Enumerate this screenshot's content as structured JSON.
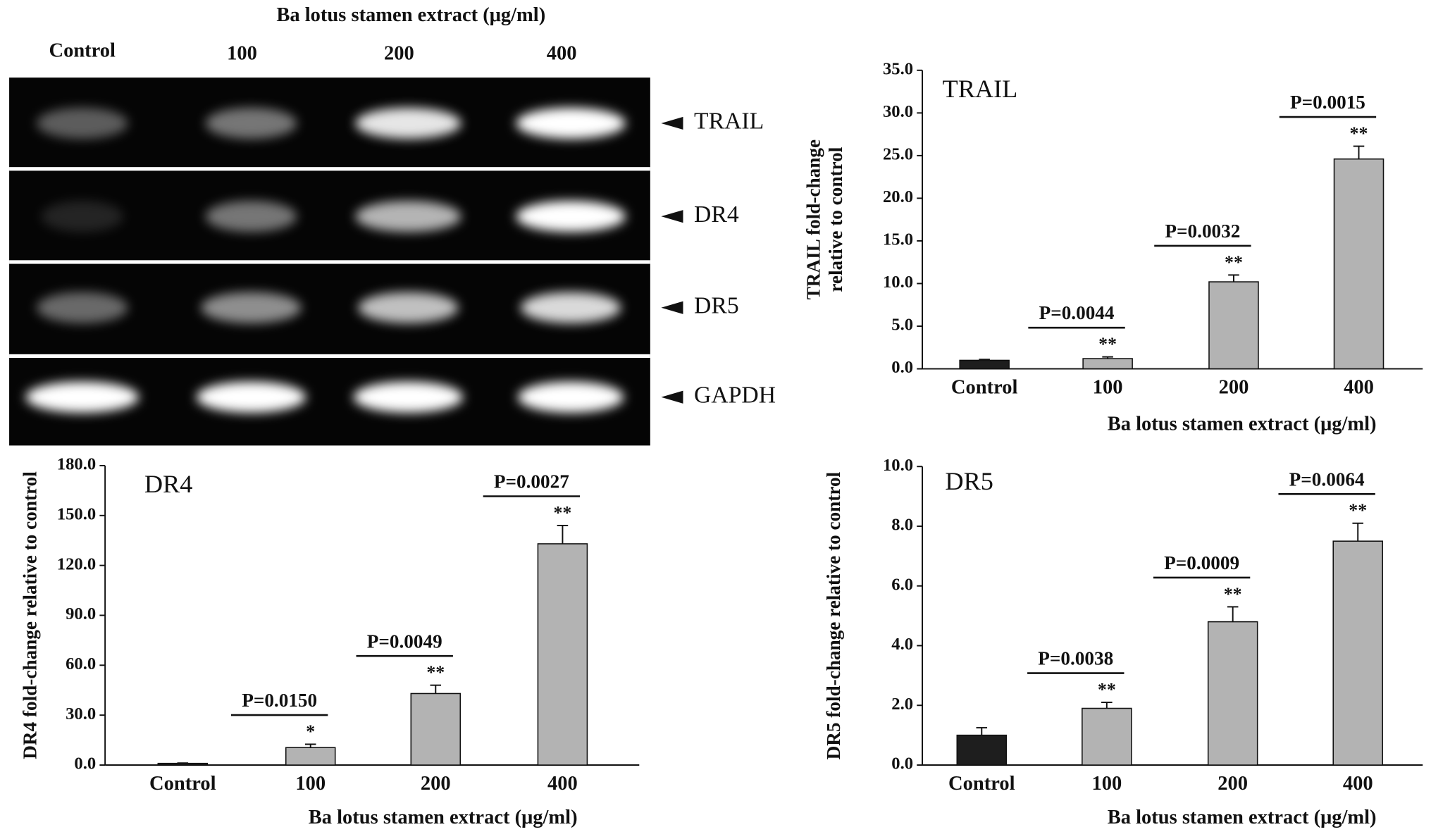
{
  "gel": {
    "title": "Ba lotus stamen extract (μg/ml)",
    "lanes": [
      "Control",
      "100",
      "200",
      "400"
    ],
    "bands": [
      "TRAIL",
      "DR4",
      "DR5",
      "GAPDH"
    ]
  },
  "chart_data": [
    {
      "type": "bar",
      "title": "TRAIL",
      "ylabel": [
        "TRAIL fold-change",
        "relative to control"
      ],
      "xlabel": "Ba lotus stamen extract (μg/ml)",
      "categories": [
        "Control",
        "100",
        "200",
        "400"
      ],
      "values": [
        1.0,
        1.2,
        10.2,
        24.6
      ],
      "errors": [
        0.1,
        0.2,
        0.8,
        1.5
      ],
      "colors": [
        "#1e1e1e",
        "#b3b3b3",
        "#b3b3b3",
        "#b3b3b3"
      ],
      "stars": [
        null,
        "**",
        "**",
        "**"
      ],
      "p_labels": [
        null,
        "P=0.0044",
        "P=0.0032",
        "P=0.0015"
      ],
      "ylim": [
        0,
        35
      ],
      "yticks": [
        {
          "value": 0,
          "label": "0.0"
        },
        {
          "value": 5,
          "label": "5.0"
        },
        {
          "value": 10,
          "label": "10.0"
        },
        {
          "value": 15,
          "label": "15.0"
        },
        {
          "value": 20,
          "label": "20.0"
        },
        {
          "value": 25,
          "label": "25.0"
        },
        {
          "value": 30,
          "label": "30.0"
        },
        {
          "value": 35,
          "label": "35.0"
        }
      ]
    },
    {
      "type": "bar",
      "title": "DR4",
      "ylabel": [
        "DR4 fold-change relative to control"
      ],
      "xlabel": "Ba lotus stamen extract (μg/ml)",
      "categories": [
        "Control",
        "100",
        "200",
        "400"
      ],
      "values": [
        1.0,
        10.5,
        43,
        133
      ],
      "errors": [
        0.2,
        2,
        5,
        11
      ],
      "colors": [
        "#1e1e1e",
        "#b3b3b3",
        "#b3b3b3",
        "#b3b3b3"
      ],
      "stars": [
        null,
        "*",
        "**",
        "**"
      ],
      "p_labels": [
        null,
        "P=0.0150",
        "P=0.0049",
        "P=0.0027"
      ],
      "ylim": [
        0,
        180
      ],
      "yticks": [
        {
          "value": 0,
          "label": "0.0"
        },
        {
          "value": 30,
          "label": "30.0"
        },
        {
          "value": 60,
          "label": "60.0"
        },
        {
          "value": 90,
          "label": "90.0"
        },
        {
          "value": 120,
          "label": "120.0"
        },
        {
          "value": 150,
          "label": "150.0"
        },
        {
          "value": 180,
          "label": "180.0"
        }
      ]
    },
    {
      "type": "bar",
      "title": "DR5",
      "ylabel": [
        "DR5 fold-change relative to control"
      ],
      "xlabel": "Ba lotus stamen extract (μg/ml)",
      "categories": [
        "Control",
        "100",
        "200",
        "400"
      ],
      "values": [
        1.0,
        1.9,
        4.8,
        7.5
      ],
      "errors": [
        0.25,
        0.2,
        0.5,
        0.6
      ],
      "colors": [
        "#1e1e1e",
        "#b3b3b3",
        "#b3b3b3",
        "#b3b3b3"
      ],
      "stars": [
        null,
        "**",
        "**",
        "**"
      ],
      "p_labels": [
        null,
        "P=0.0038",
        "P=0.0009",
        "P=0.0064"
      ],
      "ylim": [
        0,
        10
      ],
      "yticks": [
        {
          "value": 0,
          "label": "0.0"
        },
        {
          "value": 2,
          "label": "2.0"
        },
        {
          "value": 4,
          "label": "4.0"
        },
        {
          "value": 6,
          "label": "6.0"
        },
        {
          "value": 8,
          "label": "8.0"
        },
        {
          "value": 10,
          "label": "10.0"
        }
      ]
    }
  ]
}
